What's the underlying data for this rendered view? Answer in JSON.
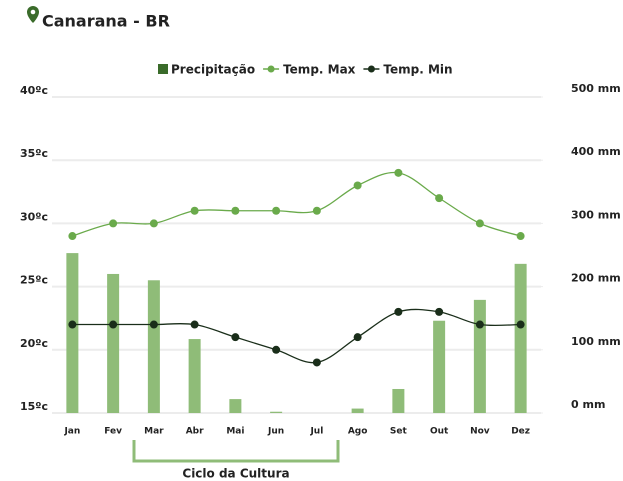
{
  "chart_data": {
    "type": "combo",
    "title": "Canarana - BR",
    "categories": [
      "Jan",
      "Fev",
      "Mar",
      "Abr",
      "Mai",
      "Jun",
      "Jul",
      "Ago",
      "Set",
      "Out",
      "Nov",
      "Dez"
    ],
    "series": [
      {
        "name": "Precipitação",
        "type": "bar",
        "axis": "y2",
        "color": "#8fbc78",
        "values": [
          253,
          220,
          210,
          117,
          22,
          2,
          0,
          7,
          38,
          146,
          179,
          236
        ]
      },
      {
        "name": "Temp. Max",
        "type": "line",
        "color": "#6aaa4b",
        "values": [
          29,
          30,
          30,
          31,
          31,
          31,
          31,
          33,
          34,
          32,
          30,
          29
        ]
      },
      {
        "name": "Temp. Min",
        "type": "line",
        "color": "#1a2e1a",
        "values": [
          22,
          22,
          22,
          22,
          21,
          20,
          19,
          21,
          23,
          23,
          22,
          22
        ]
      }
    ],
    "ylim": [
      15,
      40
    ],
    "yticks": [
      {
        "value": 15,
        "label": "15ºc"
      },
      {
        "value": 20,
        "label": "20ºc"
      },
      {
        "value": 25,
        "label": "25ºc"
      },
      {
        "value": 30,
        "label": "30ºc"
      },
      {
        "value": 35,
        "label": "35ºc"
      },
      {
        "value": 40,
        "label": "40ºc"
      }
    ],
    "y2lim": [
      0,
      500
    ],
    "y2ticks": [
      {
        "value": 0,
        "label": "0 mm"
      },
      {
        "value": 100,
        "label": "100 mm"
      },
      {
        "value": 200,
        "label": "200 mm"
      },
      {
        "value": 300,
        "label": "300 mm"
      },
      {
        "value": 400,
        "label": "400 mm"
      },
      {
        "value": 500,
        "label": "500 mm"
      }
    ],
    "grid": true,
    "legend": "top",
    "annotation": "Ciclo da Cultura"
  }
}
